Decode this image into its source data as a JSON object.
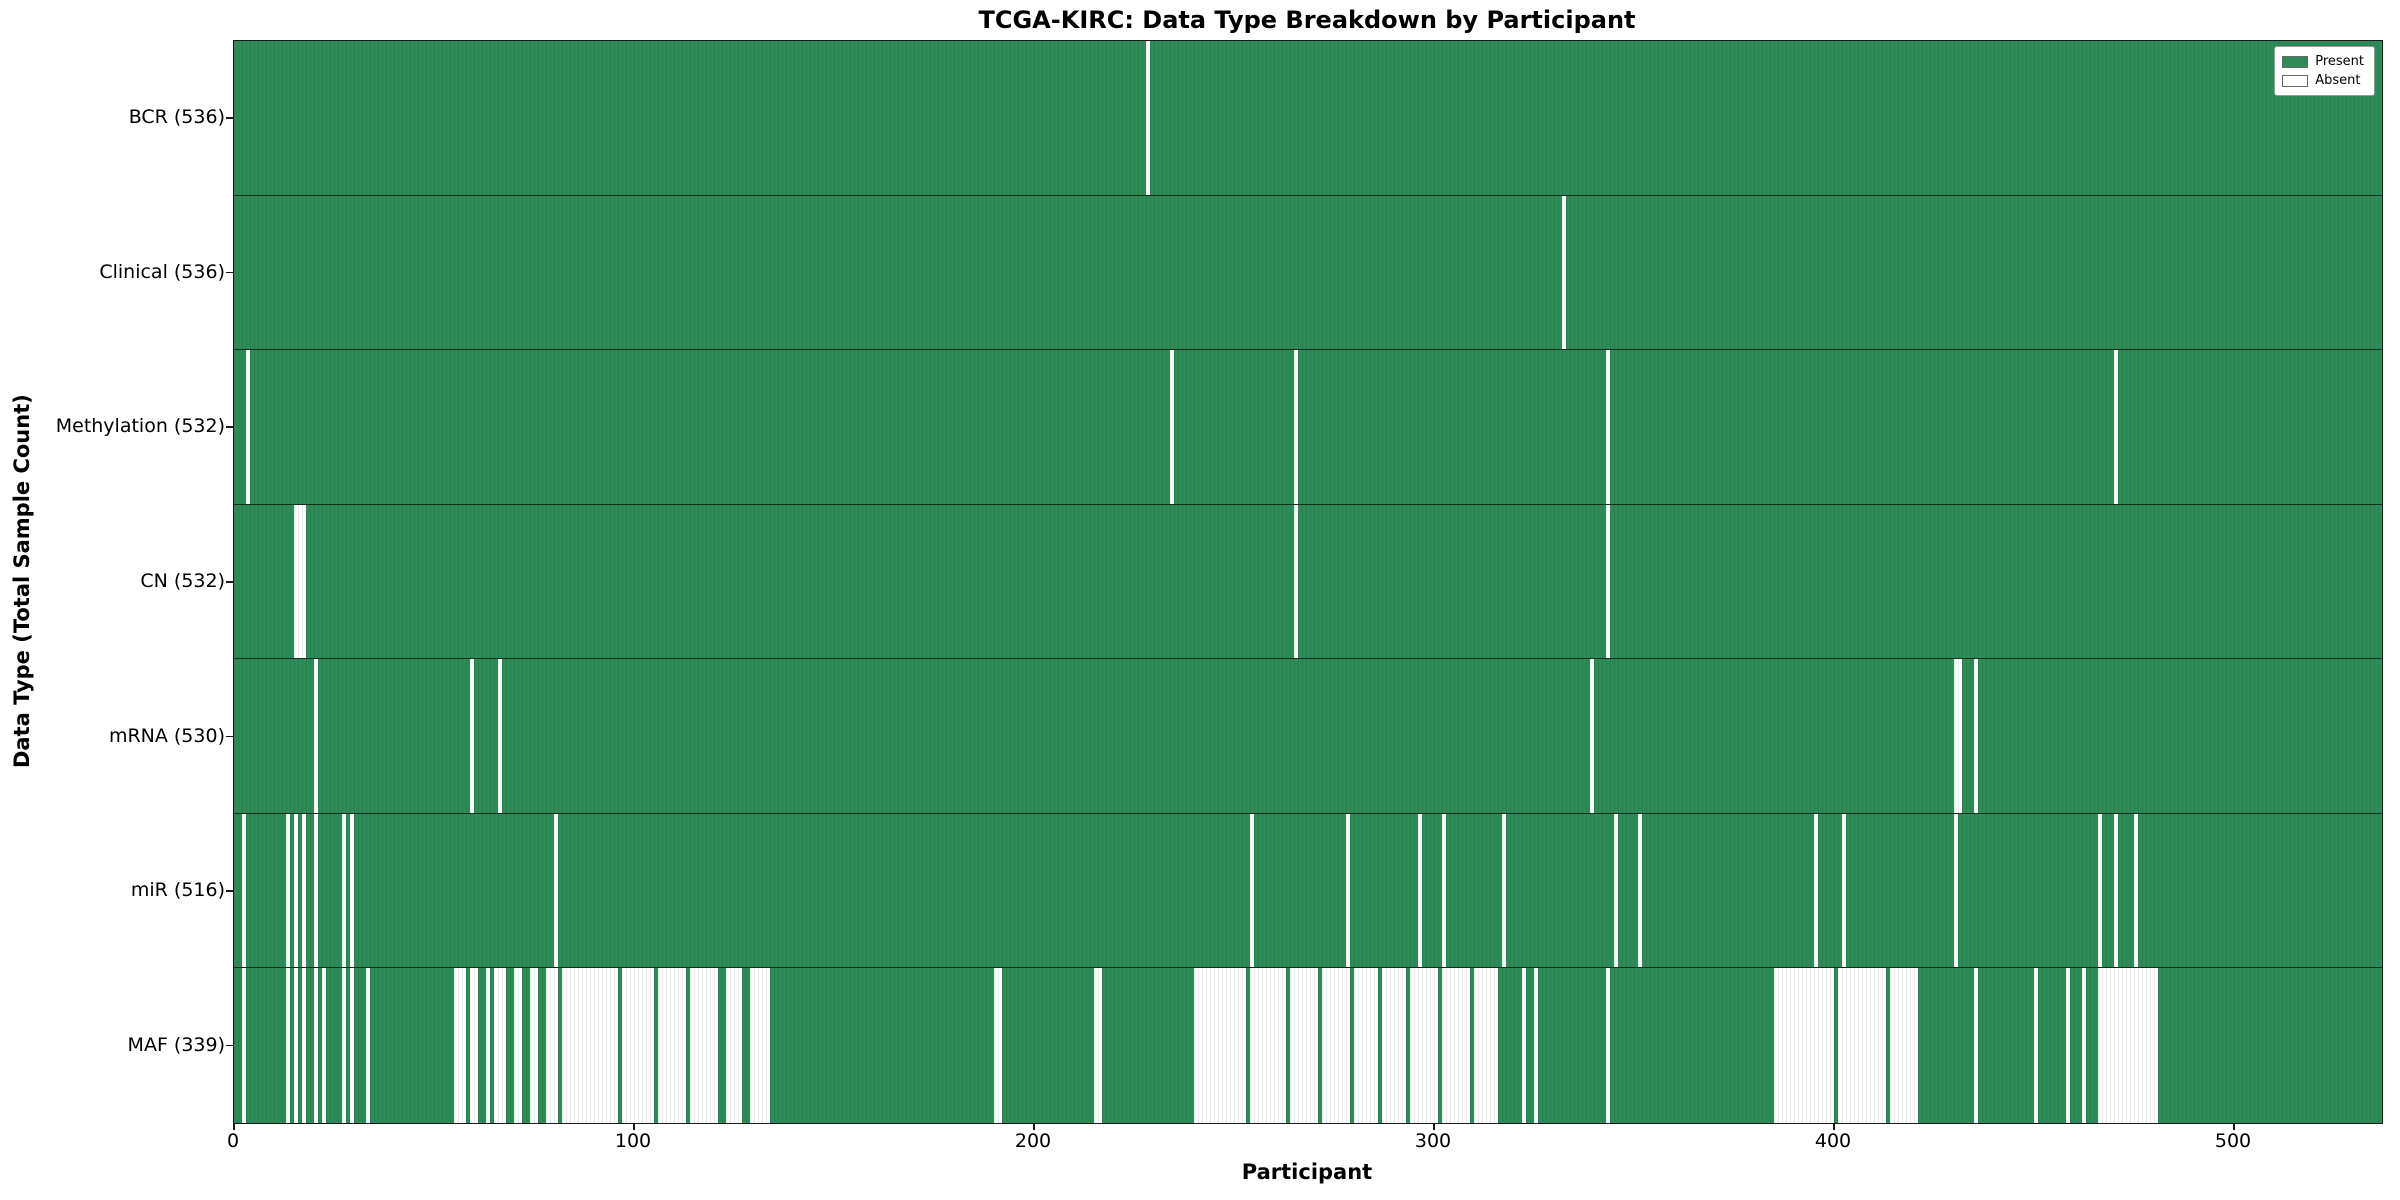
{
  "chart_data": {
    "type": "heatmap",
    "title": "TCGA-KIRC: Data Type Breakdown by Participant",
    "xlabel": "Participant",
    "ylabel": "Data Type (Total Sample Count)",
    "n_participants": 537,
    "x_range": [
      0,
      537
    ],
    "xticks": [
      "0",
      "100",
      "200",
      "300",
      "400",
      "500"
    ],
    "xtick_values": [
      0,
      100,
      200,
      300,
      400,
      500
    ],
    "grid": false,
    "colors": {
      "present": "#2e8b57",
      "absent": "#ffffff"
    },
    "legend": {
      "position": "upper right",
      "entries": [
        {
          "label": "Present",
          "color": "#2e8b57"
        },
        {
          "label": "Absent",
          "color": "#ffffff"
        }
      ]
    },
    "rows": [
      {
        "name": "BCR",
        "label": "BCR (536)",
        "present_count": 536,
        "absent_ranges": [
          [
            228,
            228
          ]
        ]
      },
      {
        "name": "Clinical",
        "label": "Clinical (536)",
        "present_count": 536,
        "absent_ranges": [
          [
            332,
            332
          ]
        ]
      },
      {
        "name": "Methylation",
        "label": "Methylation (532)",
        "present_count": 532,
        "absent_ranges": [
          [
            3,
            3
          ],
          [
            234,
            234
          ],
          [
            265,
            265
          ],
          [
            343,
            343
          ],
          [
            470,
            470
          ]
        ]
      },
      {
        "name": "CN",
        "label": "CN (532)",
        "present_count": 532,
        "absent_ranges": [
          [
            15,
            17
          ],
          [
            265,
            265
          ],
          [
            343,
            343
          ]
        ]
      },
      {
        "name": "mRNA",
        "label": "mRNA (530)",
        "present_count": 530,
        "absent_ranges": [
          [
            20,
            20
          ],
          [
            59,
            59
          ],
          [
            66,
            66
          ],
          [
            339,
            339
          ],
          [
            430,
            431
          ],
          [
            435,
            435
          ]
        ]
      },
      {
        "name": "miR",
        "label": "miR (516)",
        "present_count": 516,
        "absent_ranges": [
          [
            2,
            2
          ],
          [
            13,
            13
          ],
          [
            15,
            15
          ],
          [
            17,
            17
          ],
          [
            20,
            20
          ],
          [
            27,
            27
          ],
          [
            29,
            29
          ],
          [
            80,
            80
          ],
          [
            254,
            254
          ],
          [
            278,
            278
          ],
          [
            296,
            296
          ],
          [
            302,
            302
          ],
          [
            317,
            317
          ],
          [
            345,
            345
          ],
          [
            351,
            351
          ],
          [
            395,
            395
          ],
          [
            402,
            402
          ],
          [
            430,
            430
          ],
          [
            466,
            466
          ],
          [
            470,
            470
          ],
          [
            475,
            475
          ]
        ]
      },
      {
        "name": "MAF",
        "label": "MAF (339)",
        "present_count": 339,
        "absent_ranges": [
          [
            2,
            2
          ],
          [
            13,
            13
          ],
          [
            15,
            15
          ],
          [
            17,
            17
          ],
          [
            20,
            20
          ],
          [
            22,
            22
          ],
          [
            27,
            27
          ],
          [
            29,
            29
          ],
          [
            33,
            33
          ],
          [
            55,
            57
          ],
          [
            59,
            60
          ],
          [
            63,
            63
          ],
          [
            65,
            67
          ],
          [
            70,
            71
          ],
          [
            74,
            75
          ],
          [
            78,
            80
          ],
          [
            82,
            95
          ],
          [
            97,
            104
          ],
          [
            106,
            112
          ],
          [
            114,
            120
          ],
          [
            123,
            126
          ],
          [
            129,
            133
          ],
          [
            190,
            191
          ],
          [
            215,
            216
          ],
          [
            240,
            252
          ],
          [
            254,
            262
          ],
          [
            264,
            270
          ],
          [
            272,
            278
          ],
          [
            280,
            285
          ],
          [
            287,
            292
          ],
          [
            294,
            300
          ],
          [
            302,
            308
          ],
          [
            310,
            315
          ],
          [
            322,
            322
          ],
          [
            325,
            325
          ],
          [
            343,
            343
          ],
          [
            385,
            399
          ],
          [
            401,
            412
          ],
          [
            414,
            420
          ],
          [
            435,
            435
          ],
          [
            450,
            450
          ],
          [
            458,
            458
          ],
          [
            462,
            462
          ],
          [
            466,
            480
          ]
        ]
      }
    ]
  }
}
